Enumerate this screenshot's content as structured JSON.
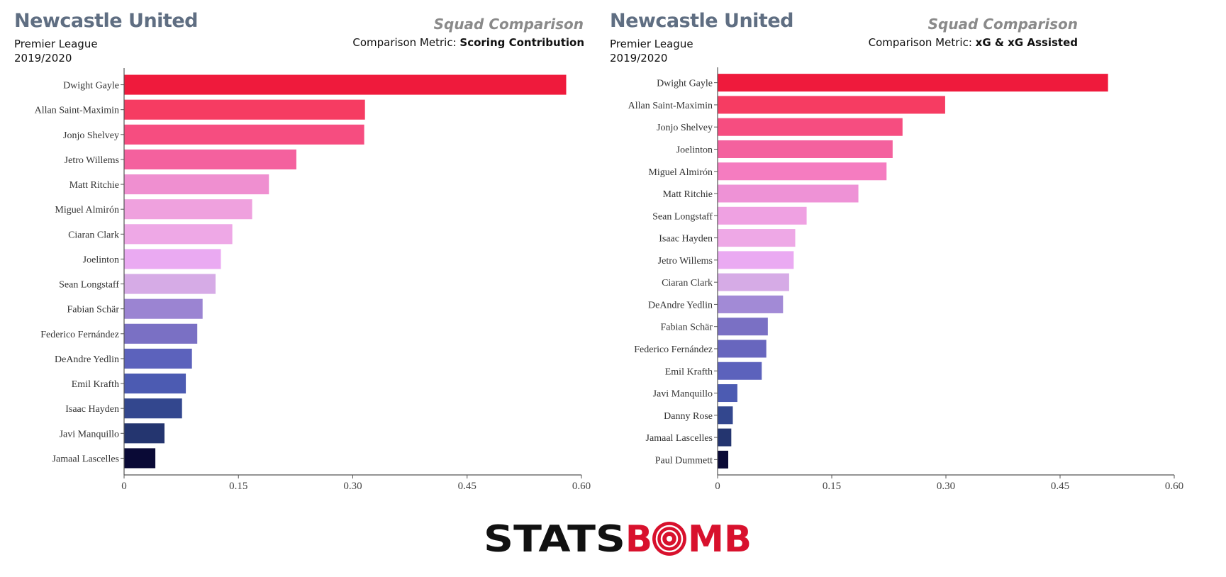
{
  "panels": [
    {
      "team": "Newcastle United",
      "league": "Premier League",
      "season": "2019/2020",
      "squad_label": "Squad Comparison",
      "metric_prefix": "Comparison Metric: ",
      "metric_name": "Scoring Contribution"
    },
    {
      "team": "Newcastle United",
      "league": "Premier League",
      "season": "2019/2020",
      "squad_label": "Squad Comparison",
      "metric_prefix": "Comparison Metric: ",
      "metric_name": "xG & xG Assisted"
    }
  ],
  "chart_data": [
    {
      "type": "bar",
      "orientation": "horizontal",
      "categories": [
        "Dwight Gayle",
        "Allan Saint-Maximin",
        "Jonjo Shelvey",
        "Jetro Willems",
        "Matt Ritchie",
        "Miguel Almirón",
        "Ciaran Clark",
        "Joelinton",
        "Sean Longstaff",
        "Fabian Schär",
        "Federico Fernández",
        "DeAndre Yedlin",
        "Emil Krafth",
        "Isaac Hayden",
        "Javi Manquillo",
        "Jamaal Lascelles"
      ],
      "values": [
        0.58,
        0.316,
        0.315,
        0.226,
        0.19,
        0.168,
        0.142,
        0.127,
        0.12,
        0.103,
        0.096,
        0.089,
        0.081,
        0.076,
        0.053,
        0.041
      ],
      "colors": [
        "#ef1a3c",
        "#f63c62",
        "#f64d80",
        "#f4619e",
        "#ef8fd0",
        "#efa1de",
        "#eea8e6",
        "#eaaaf2",
        "#d6abe6",
        "#9b84d2",
        "#7a70c4",
        "#5c62bc",
        "#4c5bb2",
        "#33478e",
        "#24356f",
        "#0a0a36"
      ],
      "xlim": [
        0,
        0.6
      ],
      "xticks": [
        "0",
        "0.15",
        "0.30",
        "0.45",
        "0.60"
      ],
      "xtick_values": [
        0,
        0.15,
        0.3,
        0.45,
        0.6
      ]
    },
    {
      "type": "bar",
      "orientation": "horizontal",
      "categories": [
        "Dwight Gayle",
        "Allan Saint-Maximin",
        "Jonjo Shelvey",
        "Joelinton",
        "Miguel Almirón",
        "Matt Ritchie",
        "Sean Longstaff",
        "Isaac Hayden",
        "Jetro Willems",
        "Ciaran Clark",
        "DeAndre Yedlin",
        "Fabian Schär",
        "Federico Fernández",
        "Emil Krafth",
        "Javi Manquillo",
        "Danny Rose",
        "Jamaal Lascelles",
        "Paul Dummett"
      ],
      "values": [
        0.513,
        0.299,
        0.243,
        0.23,
        0.222,
        0.185,
        0.117,
        0.102,
        0.1,
        0.094,
        0.086,
        0.066,
        0.064,
        0.058,
        0.026,
        0.02,
        0.018,
        0.014
      ],
      "colors": [
        "#ef1a3c",
        "#f63c62",
        "#f64d80",
        "#f4619e",
        "#f57cc0",
        "#ee92d6",
        "#efa1e2",
        "#eea8e6",
        "#eaaaf2",
        "#d6abe6",
        "#a28ad6",
        "#7a70c4",
        "#6866be",
        "#5c62bc",
        "#4c5bb2",
        "#33478e",
        "#24356f",
        "#0a0a36"
      ],
      "xlim": [
        0,
        0.6
      ],
      "xticks": [
        "0",
        "0.15",
        "0.30",
        "0.45",
        "0.60"
      ],
      "xtick_values": [
        0,
        0.15,
        0.3,
        0.45,
        0.6
      ]
    }
  ],
  "logo": {
    "text_left": "STATS",
    "text_right": "B",
    "text_end": "MB",
    "left_color": "#111111",
    "right_color": "#d8112d"
  }
}
